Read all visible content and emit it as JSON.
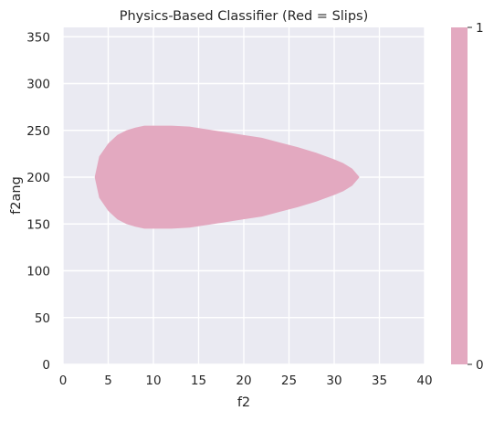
{
  "chart_data": {
    "type": "heatmap",
    "title": "Physics-Based Classifier (Red = Slips)",
    "xlabel": "f2",
    "ylabel": "f2ang",
    "xlim": [
      0,
      40
    ],
    "ylim": [
      0,
      360
    ],
    "xticks": [
      "0",
      "5",
      "10",
      "15",
      "20",
      "25",
      "30",
      "35",
      "40"
    ],
    "xtick_values": [
      0,
      5,
      10,
      15,
      20,
      25,
      30,
      35,
      40
    ],
    "yticks": [
      "0",
      "50",
      "100",
      "150",
      "200",
      "250",
      "300",
      "350"
    ],
    "ytick_values": [
      0,
      50,
      100,
      150,
      200,
      250,
      300,
      350
    ],
    "grid": true,
    "colorbar": {
      "ticks": [
        "0",
        "1"
      ],
      "tick_values": [
        0,
        1
      ],
      "color": "#e3a9c0"
    },
    "region_label": "Slips",
    "region_value": 1,
    "region_color": "#e3a9c0",
    "background_color": "#eaeaf2",
    "region_boundary": {
      "f2": [
        3.5,
        4.0,
        5.0,
        6.0,
        7.0,
        8.0,
        9.0,
        10.0,
        12.0,
        14.0,
        16.0,
        18.0,
        20.0,
        22.0,
        24.0,
        26.0,
        28.0,
        30.0,
        31.0,
        32.0,
        32.8
      ],
      "f2ang_upper": [
        200,
        222,
        236,
        245,
        250,
        253,
        255,
        255,
        255,
        254,
        251,
        248,
        245,
        242,
        237,
        232,
        226,
        219,
        215,
        209,
        200
      ],
      "f2ang_lower": [
        200,
        178,
        164,
        155,
        150,
        147,
        145,
        145,
        145,
        146,
        149,
        152,
        155,
        158,
        163,
        168,
        174,
        181,
        185,
        191,
        200
      ]
    }
  }
}
